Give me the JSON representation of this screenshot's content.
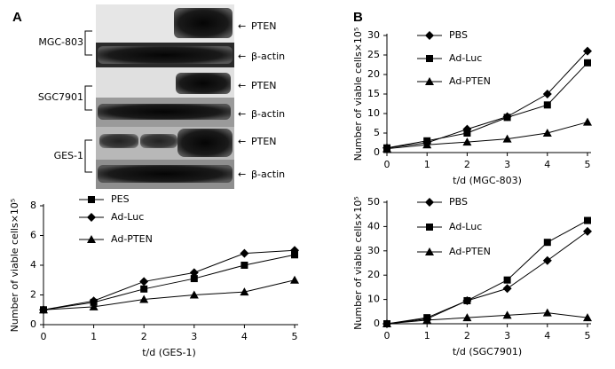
{
  "blot": {
    "panel": "A",
    "groups": [
      {
        "name": "MGC-803",
        "bands": [
          "PTEN",
          "β-actin"
        ]
      },
      {
        "name": "SGC7901",
        "bands": [
          "PTEN",
          "β-actin"
        ]
      },
      {
        "name": "GES-1",
        "bands": [
          "PTEN",
          "β-actin"
        ]
      }
    ]
  },
  "panel_b": "B",
  "chart_data": [
    {
      "type": "line",
      "xlabel": "t/d (GES-1)",
      "ylabel": "Number of viable cells×10⁵",
      "x": [
        0,
        1,
        2,
        3,
        4,
        5
      ],
      "xlim": [
        0,
        5
      ],
      "xticks": [
        0,
        1,
        2,
        3,
        4,
        5
      ],
      "ylim": [
        0,
        8
      ],
      "yticks": [
        0,
        2,
        4,
        6,
        8
      ],
      "series": [
        {
          "name": "PES",
          "color": "#000000",
          "marker": "square",
          "values": [
            1.0,
            1.5,
            2.4,
            3.1,
            4.0,
            4.7
          ]
        },
        {
          "name": "Ad-Luc",
          "color": "#000000",
          "marker": "diamond",
          "values": [
            1.0,
            1.6,
            2.9,
            3.5,
            4.8,
            5.0
          ]
        },
        {
          "name": "Ad-PTEN",
          "color": "#000000",
          "marker": "triangle",
          "values": [
            1.0,
            1.2,
            1.7,
            2.0,
            2.2,
            3.0
          ]
        }
      ]
    },
    {
      "type": "line",
      "xlabel": "t/d (MGC-803)",
      "ylabel": "Number of viable cells×10⁵",
      "x": [
        0,
        1,
        2,
        3,
        4,
        5
      ],
      "xlim": [
        0,
        5
      ],
      "xticks": [
        0,
        1,
        2,
        3,
        4,
        5
      ],
      "ylim": [
        0,
        30
      ],
      "yticks": [
        0,
        5,
        10,
        15,
        20,
        25,
        30
      ],
      "series": [
        {
          "name": "PBS",
          "color": "#000000",
          "marker": "diamond",
          "values": [
            1.2,
            2.5,
            6,
            9.2,
            15,
            26
          ]
        },
        {
          "name": "Ad-Luc",
          "color": "#000000",
          "marker": "square",
          "values": [
            1.2,
            3,
            5,
            9,
            12.2,
            23
          ]
        },
        {
          "name": "Ad-PTEN",
          "color": "#000000",
          "marker": "triangle",
          "values": [
            1,
            2,
            2.7,
            3.5,
            5,
            7.8
          ]
        }
      ]
    },
    {
      "type": "line",
      "xlabel": "t/d (SGC7901)",
      "ylabel": "Number of viable cells×10⁵",
      "x": [
        0,
        1,
        2,
        3,
        4,
        5
      ],
      "xlim": [
        0,
        5
      ],
      "xticks": [
        0,
        1,
        2,
        3,
        4,
        5
      ],
      "ylim": [
        0,
        50
      ],
      "yticks": [
        0,
        10,
        20,
        30,
        40,
        50
      ],
      "series": [
        {
          "name": "PBS",
          "color": "#000000",
          "marker": "diamond",
          "values": [
            0,
            2,
            9.5,
            14.5,
            26,
            38
          ]
        },
        {
          "name": "Ad-Luc",
          "color": "#000000",
          "marker": "square",
          "values": [
            0,
            2.5,
            9.5,
            18,
            33.5,
            42.5
          ]
        },
        {
          "name": "Ad-PTEN",
          "color": "#000000",
          "marker": "triangle",
          "values": [
            0,
            1.5,
            2.5,
            3.5,
            4.5,
            2.5
          ]
        }
      ]
    }
  ]
}
